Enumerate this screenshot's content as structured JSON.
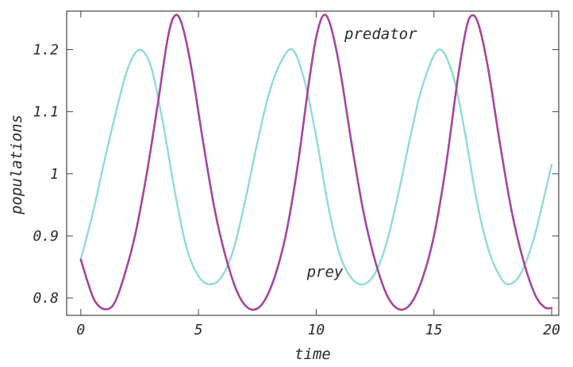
{
  "chart_data": {
    "type": "line",
    "title": "",
    "xlabel": "time",
    "ylabel": "populations",
    "xlim": [
      -0.6,
      20.3
    ],
    "ylim": [
      0.772,
      1.262
    ],
    "x_ticks": [
      {
        "value": 0,
        "label": "0"
      },
      {
        "value": 5,
        "label": "5"
      },
      {
        "value": 10,
        "label": "10"
      },
      {
        "value": 15,
        "label": "15"
      },
      {
        "value": 20,
        "label": "20"
      }
    ],
    "y_ticks": [
      {
        "value": 0.8,
        "label": "0.8"
      },
      {
        "value": 0.9,
        "label": "0.9"
      },
      {
        "value": 1.0,
        "label": "1"
      },
      {
        "value": 1.1,
        "label": "1.1"
      },
      {
        "value": 1.2,
        "label": "1.2"
      }
    ],
    "grid": false,
    "series": [
      {
        "name": "prey",
        "color": "#8fdcd4",
        "points": [
          [
            0,
            0.862
          ],
          [
            0.5,
            0.935
          ],
          [
            1.0,
            1.02
          ],
          [
            1.5,
            1.1
          ],
          [
            2.0,
            1.17
          ],
          [
            2.5,
            1.2
          ],
          [
            3.0,
            1.17
          ],
          [
            3.5,
            1.08
          ],
          [
            4.0,
            0.97
          ],
          [
            4.5,
            0.88
          ],
          [
            5.0,
            0.835
          ],
          [
            5.5,
            0.822
          ],
          [
            6.0,
            0.835
          ],
          [
            6.5,
            0.88
          ],
          [
            7.0,
            0.96
          ],
          [
            7.5,
            1.05
          ],
          [
            8.0,
            1.13
          ],
          [
            8.5,
            1.18
          ],
          [
            9.0,
            1.2
          ],
          [
            9.5,
            1.15
          ],
          [
            10.0,
            1.06
          ],
          [
            10.5,
            0.95
          ],
          [
            11.0,
            0.87
          ],
          [
            11.5,
            0.832
          ],
          [
            12.0,
            0.822
          ],
          [
            12.5,
            0.84
          ],
          [
            13.0,
            0.89
          ],
          [
            13.5,
            0.97
          ],
          [
            14.0,
            1.06
          ],
          [
            14.5,
            1.14
          ],
          [
            15.2,
            1.2
          ],
          [
            15.8,
            1.16
          ],
          [
            16.3,
            1.07
          ],
          [
            16.8,
            0.96
          ],
          [
            17.3,
            0.88
          ],
          [
            17.8,
            0.835
          ],
          [
            18.2,
            0.822
          ],
          [
            18.7,
            0.84
          ],
          [
            19.2,
            0.89
          ],
          [
            19.6,
            0.95
          ],
          [
            20.0,
            1.015
          ]
        ]
      },
      {
        "name": "predator",
        "color": "#a6449e",
        "points": [
          [
            0,
            0.862
          ],
          [
            0.3,
            0.825
          ],
          [
            0.6,
            0.795
          ],
          [
            1.0,
            0.782
          ],
          [
            1.4,
            0.79
          ],
          [
            1.8,
            0.83
          ],
          [
            2.3,
            0.9
          ],
          [
            2.8,
            1.0
          ],
          [
            3.3,
            1.12
          ],
          [
            3.7,
            1.22
          ],
          [
            4.0,
            1.255
          ],
          [
            4.3,
            1.24
          ],
          [
            4.7,
            1.17
          ],
          [
            5.2,
            1.05
          ],
          [
            5.7,
            0.94
          ],
          [
            6.2,
            0.86
          ],
          [
            6.7,
            0.805
          ],
          [
            7.2,
            0.782
          ],
          [
            7.7,
            0.79
          ],
          [
            8.2,
            0.83
          ],
          [
            8.7,
            0.9
          ],
          [
            9.2,
            1.01
          ],
          [
            9.7,
            1.15
          ],
          [
            10.0,
            1.22
          ],
          [
            10.3,
            1.255
          ],
          [
            10.6,
            1.24
          ],
          [
            11.0,
            1.17
          ],
          [
            11.5,
            1.05
          ],
          [
            12.0,
            0.94
          ],
          [
            12.5,
            0.86
          ],
          [
            13.0,
            0.805
          ],
          [
            13.5,
            0.782
          ],
          [
            14.0,
            0.79
          ],
          [
            14.5,
            0.83
          ],
          [
            15.0,
            0.9
          ],
          [
            15.5,
            1.01
          ],
          [
            16.0,
            1.15
          ],
          [
            16.35,
            1.23
          ],
          [
            16.6,
            1.255
          ],
          [
            16.9,
            1.24
          ],
          [
            17.3,
            1.17
          ],
          [
            17.8,
            1.05
          ],
          [
            18.3,
            0.94
          ],
          [
            18.8,
            0.86
          ],
          [
            19.3,
            0.805
          ],
          [
            19.7,
            0.785
          ],
          [
            20.0,
            0.784
          ]
        ]
      }
    ],
    "annotations": [
      {
        "text": "predator",
        "series": "predator",
        "x": 11.2,
        "y": 1.217
      },
      {
        "text": "prey",
        "series": "prey",
        "x": 9.6,
        "y": 0.834
      }
    ]
  }
}
